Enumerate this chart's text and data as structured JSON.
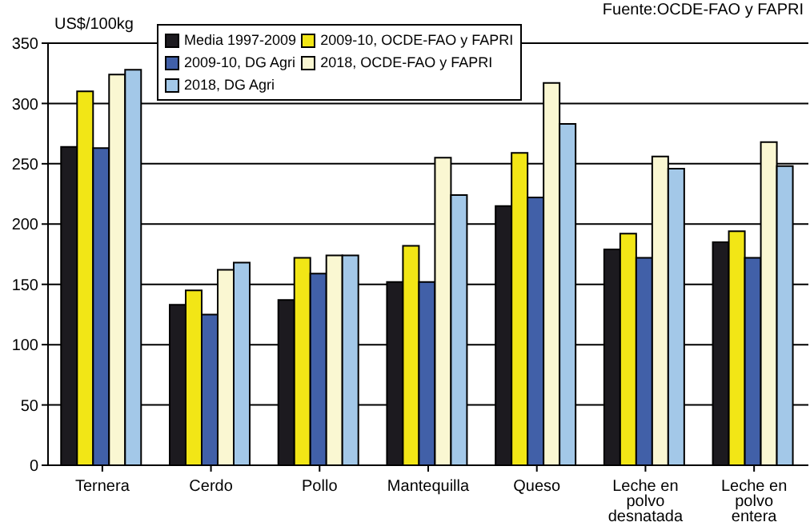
{
  "chart_data": {
    "type": "bar",
    "ylabel": "US$/100kg",
    "annotations": [
      "Fuente:OCDE-FAO y FAPRI"
    ],
    "categories": [
      "Ternera",
      "Cerdo",
      "Pollo",
      "Mantequilla",
      "Queso",
      "Leche en polvo desnatada",
      "Leche en polvo entera"
    ],
    "series": [
      {
        "name": "Media 1997-2009",
        "color": "#1c1a1f",
        "values": [
          264,
          133,
          137,
          152,
          215,
          179,
          185
        ]
      },
      {
        "name": "2009-10, OCDE-FAO y FAPRI",
        "color": "#f2e616",
        "values": [
          310,
          145,
          172,
          182,
          259,
          192,
          194
        ]
      },
      {
        "name": "2009-10, DG Agri",
        "color": "#4160a8",
        "values": [
          263,
          125,
          159,
          152,
          222,
          172,
          172
        ]
      },
      {
        "name": "2018, OCDE-FAO y FAPRI",
        "color": "#faf7d2",
        "values": [
          324,
          162,
          174,
          255,
          317,
          256,
          268
        ]
      },
      {
        "name": "2018, DG Agri",
        "color": "#a3c8e8",
        "values": [
          328,
          168,
          174,
          224,
          283,
          246,
          248
        ]
      }
    ],
    "ylim": [
      0,
      350
    ],
    "yticks": [
      0,
      50,
      100,
      150,
      200,
      250,
      300,
      350
    ],
    "grid": "y",
    "legend": "top"
  }
}
